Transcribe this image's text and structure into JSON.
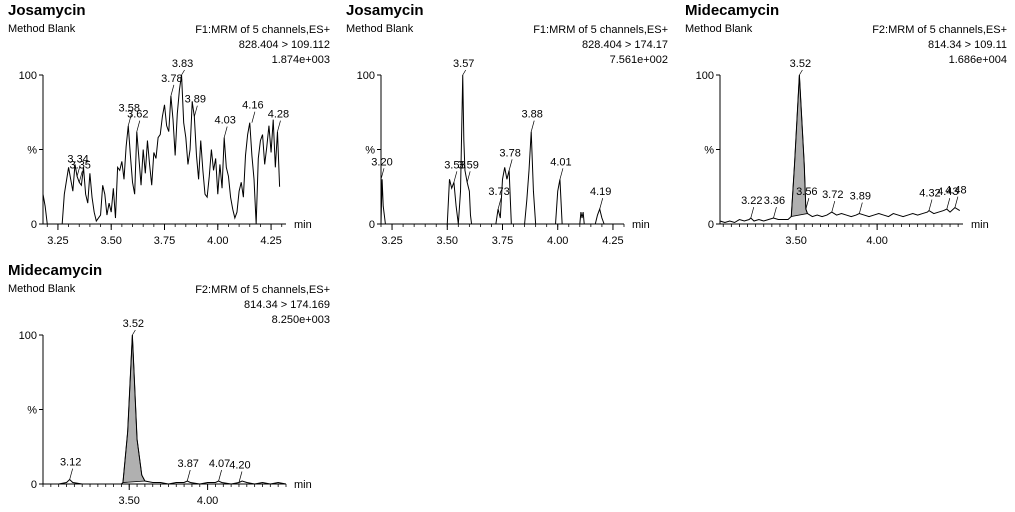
{
  "chart_data": [
    {
      "type": "line",
      "title": "Josamycin",
      "sample": "Method Blank",
      "function_lines": [
        "F1:MRM of 5 channels,ES+",
        "828.404 > 109.112",
        "1.874e+003"
      ],
      "xlabel": "min",
      "ylabel": "%",
      "ytick_labels": [
        "100",
        "%",
        "0"
      ],
      "xlim": [
        3.18,
        4.32
      ],
      "ylim": [
        0,
        100
      ],
      "xticks": [
        3.25,
        3.5,
        3.75,
        4.0,
        4.25
      ],
      "xtick_labels": [
        "3.25",
        "3.50",
        "3.75",
        "4.00",
        "4.25"
      ],
      "filled_peak": null,
      "series": [
        {
          "x": [
            3.18,
            3.19,
            3.2,
            3.21,
            3.23,
            3.27,
            3.28,
            3.3,
            3.31,
            3.32,
            3.33,
            3.34,
            3.35,
            3.36,
            3.37,
            3.38,
            3.39,
            3.4,
            3.41,
            3.42,
            3.43,
            3.45,
            3.46,
            3.47,
            3.48,
            3.49,
            3.5,
            3.51,
            3.52,
            3.53,
            3.54,
            3.55,
            3.56,
            3.57,
            3.58,
            3.59,
            3.6,
            3.61,
            3.62,
            3.63,
            3.64,
            3.65,
            3.66,
            3.67,
            3.68,
            3.69,
            3.7,
            3.71,
            3.72,
            3.73,
            3.74,
            3.75,
            3.76,
            3.77,
            3.78,
            3.79,
            3.8,
            3.81,
            3.82,
            3.83,
            3.84,
            3.85,
            3.86,
            3.87,
            3.88,
            3.89,
            3.9,
            3.91,
            3.92,
            3.93,
            3.94,
            3.95,
            3.96,
            3.97,
            3.98,
            3.99,
            4.0,
            4.01,
            4.02,
            4.03,
            4.04,
            4.05,
            4.06,
            4.07,
            4.08,
            4.09,
            4.1,
            4.11,
            4.12,
            4.13,
            4.14,
            4.15,
            4.16,
            4.17,
            4.18,
            4.19,
            4.2,
            4.21,
            4.22,
            4.23,
            4.24,
            4.25,
            4.26,
            4.27,
            4.28,
            4.29
          ],
          "y": [
            20,
            12,
            0,
            0,
            0,
            0,
            20,
            38,
            30,
            22,
            40,
            32,
            28,
            26,
            38,
            20,
            14,
            34,
            18,
            8,
            2,
            6,
            26,
            20,
            6,
            14,
            8,
            24,
            4,
            38,
            36,
            42,
            30,
            52,
            66,
            46,
            28,
            20,
            62,
            44,
            26,
            50,
            34,
            56,
            40,
            26,
            48,
            44,
            58,
            60,
            72,
            80,
            66,
            62,
            86,
            70,
            46,
            74,
            90,
            100,
            68,
            58,
            40,
            50,
            82,
            72,
            46,
            30,
            56,
            36,
            20,
            18,
            32,
            50,
            36,
            44,
            20,
            40,
            24,
            58,
            38,
            32,
            18,
            10,
            4,
            8,
            22,
            28,
            18,
            46,
            60,
            68,
            46,
            30,
            0,
            44,
            56,
            60,
            40,
            52,
            66,
            48,
            70,
            38,
            62,
            25
          ]
        }
      ],
      "peak_labels": [
        {
          "x": 3.34,
          "y": 32,
          "label": "3.34"
        },
        {
          "x": 3.35,
          "y": 28,
          "label": "3.35"
        },
        {
          "x": 3.58,
          "y": 66,
          "label": "3.58"
        },
        {
          "x": 3.62,
          "y": 62,
          "label": "3.62"
        },
        {
          "x": 3.78,
          "y": 86,
          "label": "3.78"
        },
        {
          "x": 3.83,
          "y": 100,
          "label": "3.83"
        },
        {
          "x": 3.89,
          "y": 72,
          "label": "3.89"
        },
        {
          "x": 4.03,
          "y": 58,
          "label": "4.03"
        },
        {
          "x": 4.16,
          "y": 68,
          "label": "4.16"
        },
        {
          "x": 4.28,
          "y": 62,
          "label": "4.28"
        }
      ]
    },
    {
      "type": "line",
      "title": "Josamycin",
      "sample": "Method Blank",
      "function_lines": [
        "F1:MRM of 5 channels,ES+",
        "828.404 > 174.17",
        "7.561e+002"
      ],
      "xlabel": "min",
      "ylabel": "%",
      "ytick_labels": [
        "100",
        "%",
        "0"
      ],
      "xlim": [
        3.2,
        4.3
      ],
      "ylim": [
        0,
        100
      ],
      "xticks": [
        3.25,
        3.5,
        3.75,
        4.0,
        4.25
      ],
      "xtick_labels": [
        "3.25",
        "3.50",
        "3.75",
        "4.00",
        "4.25"
      ],
      "filled_peak": null,
      "series": [
        {
          "x": [
            3.2,
            3.205,
            3.21,
            3.22,
            3.5,
            3.51,
            3.52,
            3.53,
            3.54,
            3.55,
            3.56,
            3.57,
            3.575,
            3.58,
            3.59,
            3.6,
            3.605,
            3.61,
            3.72,
            3.73,
            3.74,
            3.75,
            3.76,
            3.77,
            3.78,
            3.79,
            3.85,
            3.86,
            3.87,
            3.88,
            3.89,
            3.9,
            3.99,
            4.0,
            4.01,
            4.02,
            4.1,
            4.105,
            4.11,
            4.115,
            4.12,
            4.17,
            4.18,
            4.19,
            4.2,
            4.21,
            4.3
          ],
          "y": [
            0,
            30,
            12,
            0,
            0,
            30,
            24,
            28,
            12,
            0,
            22,
            100,
            56,
            36,
            28,
            22,
            6,
            0,
            0,
            10,
            4,
            30,
            38,
            30,
            36,
            0,
            0,
            16,
            36,
            62,
            22,
            0,
            0,
            22,
            30,
            0,
            0,
            8,
            4,
            8,
            0,
            0,
            6,
            10,
            4,
            0,
            0
          ]
        }
      ],
      "peak_labels": [
        {
          "x": 3.2,
          "y": 30,
          "label": "3.20"
        },
        {
          "x": 3.53,
          "y": 28,
          "label": "3.53"
        },
        {
          "x": 3.57,
          "y": 100,
          "label": "3.57"
        },
        {
          "x": 3.59,
          "y": 28,
          "label": "3.59"
        },
        {
          "x": 3.73,
          "y": 10,
          "label": "3.73"
        },
        {
          "x": 3.78,
          "y": 36,
          "label": "3.78"
        },
        {
          "x": 3.88,
          "y": 62,
          "label": "3.88"
        },
        {
          "x": 4.01,
          "y": 30,
          "label": "4.01"
        },
        {
          "x": 4.19,
          "y": 10,
          "label": "4.19"
        }
      ]
    },
    {
      "type": "area",
      "title": "Midecamycin",
      "sample": "Method Blank",
      "function_lines": [
        "F2:MRM of 5 channels,ES+",
        "814.34 > 109.11",
        "1.686e+004"
      ],
      "xlabel": "min",
      "ylabel": "%",
      "ytick_labels": [
        "100",
        "%",
        "0"
      ],
      "xlim": [
        3.03,
        4.53
      ],
      "ylim": [
        0,
        100
      ],
      "xticks": [
        3.5,
        4.0
      ],
      "xtick_labels": [
        "3.50",
        "4.00"
      ],
      "filled_peak": [
        3.47,
        3.57
      ],
      "series": [
        {
          "x": [
            3.03,
            3.06,
            3.09,
            3.12,
            3.15,
            3.18,
            3.21,
            3.22,
            3.24,
            3.27,
            3.3,
            3.33,
            3.36,
            3.39,
            3.42,
            3.45,
            3.47,
            3.49,
            3.52,
            3.55,
            3.56,
            3.57,
            3.6,
            3.63,
            3.66,
            3.69,
            3.72,
            3.75,
            3.78,
            3.81,
            3.84,
            3.87,
            3.89,
            3.92,
            3.95,
            3.98,
            4.01,
            4.04,
            4.07,
            4.1,
            4.13,
            4.16,
            4.19,
            4.22,
            4.25,
            4.28,
            4.31,
            4.32,
            4.35,
            4.38,
            4.41,
            4.43,
            4.45,
            4.48,
            4.51
          ],
          "y": [
            2,
            1,
            2,
            1,
            3,
            2,
            3,
            4,
            2,
            3,
            2,
            3,
            4,
            3,
            3,
            3,
            5,
            40,
            100,
            40,
            10,
            7,
            5,
            6,
            5,
            6,
            8,
            6,
            7,
            6,
            5,
            6,
            7,
            6,
            5,
            6,
            7,
            6,
            5,
            7,
            6,
            5,
            6,
            7,
            6,
            7,
            8,
            9,
            7,
            8,
            9,
            10,
            8,
            11,
            9
          ]
        }
      ],
      "peak_labels": [
        {
          "x": 3.22,
          "y": 4,
          "label": "3.22"
        },
        {
          "x": 3.36,
          "y": 4,
          "label": "3.36"
        },
        {
          "x": 3.52,
          "y": 100,
          "label": "3.52"
        },
        {
          "x": 3.56,
          "y": 10,
          "label": "3.56"
        },
        {
          "x": 3.72,
          "y": 8,
          "label": "3.72"
        },
        {
          "x": 3.89,
          "y": 7,
          "label": "3.89"
        },
        {
          "x": 4.32,
          "y": 9,
          "label": "4.32"
        },
        {
          "x": 4.43,
          "y": 10,
          "label": "4.43"
        },
        {
          "x": 4.48,
          "y": 11,
          "label": "4.48"
        }
      ]
    },
    {
      "type": "area",
      "title": "Midecamycin",
      "sample": "Method Blank",
      "function_lines": [
        "F2:MRM of 5 channels,ES+",
        "814.34 > 174.169",
        "8.250e+003"
      ],
      "xlabel": "min",
      "ylabel": "%",
      "ytick_labels": [
        "100",
        "%",
        "0"
      ],
      "xlim": [
        2.95,
        4.5
      ],
      "ylim": [
        0,
        100
      ],
      "xticks": [
        3.5,
        4.0
      ],
      "xtick_labels": [
        "3.50",
        "4.00"
      ],
      "filled_peak": [
        3.46,
        3.6
      ],
      "series": [
        {
          "x": [
            2.95,
            3.0,
            3.05,
            3.1,
            3.12,
            3.14,
            3.2,
            3.25,
            3.3,
            3.35,
            3.4,
            3.45,
            3.46,
            3.49,
            3.52,
            3.55,
            3.58,
            3.6,
            3.65,
            3.7,
            3.75,
            3.8,
            3.85,
            3.87,
            3.89,
            3.95,
            4.0,
            4.05,
            4.07,
            4.09,
            4.15,
            4.2,
            4.22,
            4.25,
            4.3,
            4.35,
            4.4,
            4.45,
            4.5
          ],
          "y": [
            0,
            0,
            0,
            1,
            3,
            1,
            0,
            0,
            0,
            0,
            0,
            0,
            1,
            35,
            100,
            30,
            6,
            2,
            1,
            1,
            0,
            1,
            1,
            2,
            1,
            0,
            1,
            1,
            2,
            1,
            0,
            1,
            2,
            1,
            0,
            1,
            0,
            1,
            0
          ]
        }
      ],
      "peak_labels": [
        {
          "x": 3.12,
          "y": 3,
          "label": "3.12"
        },
        {
          "x": 3.52,
          "y": 100,
          "label": "3.52"
        },
        {
          "x": 3.87,
          "y": 2,
          "label": "3.87"
        },
        {
          "x": 4.07,
          "y": 2,
          "label": "4.07"
        },
        {
          "x": 4.2,
          "y": 1,
          "label": "4.20"
        }
      ]
    }
  ]
}
